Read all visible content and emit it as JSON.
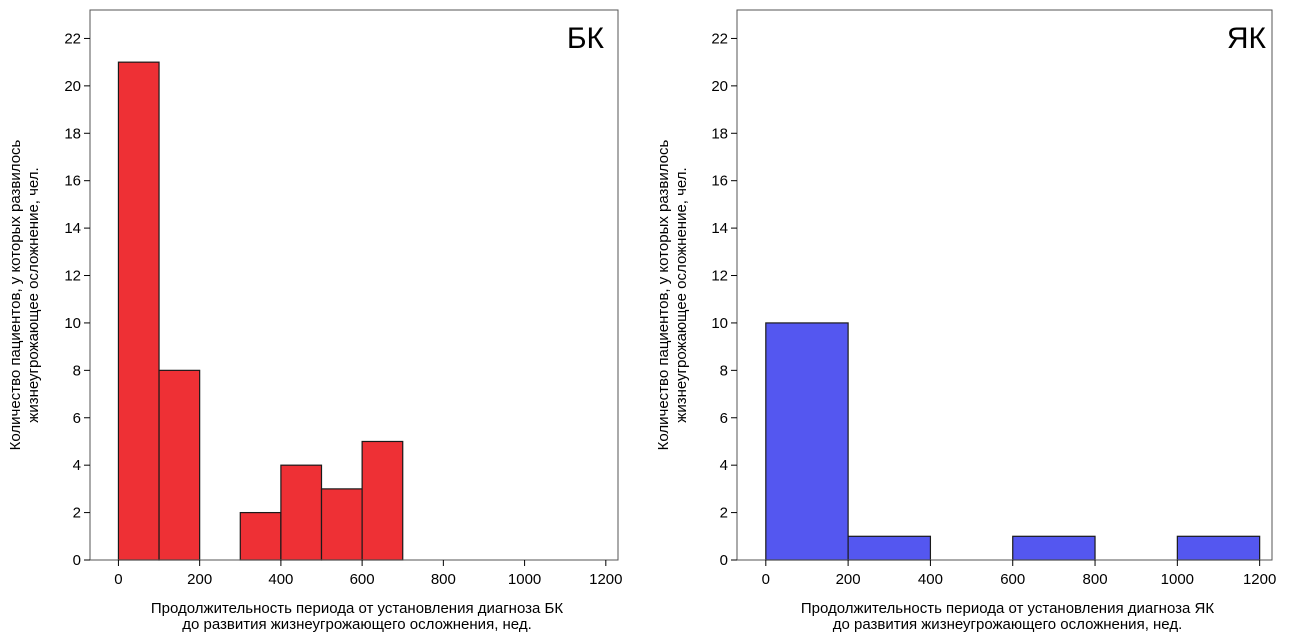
{
  "chart_data": [
    {
      "type": "bar",
      "panel_label": "БК",
      "ylabel_lines": [
        "Количество пациентов, у которых развилось",
        "жизнеугрожающее осложнение, чел."
      ],
      "xlabel_lines": [
        "Продолжительность периода от установления диагноза БК",
        "до развития жизнеугрожающего осложнения, нед."
      ],
      "xlim": [
        -70,
        1230
      ],
      "ylim": [
        0,
        23.2
      ],
      "xticks": [
        0,
        200,
        400,
        600,
        800,
        1000,
        1200
      ],
      "yticks": [
        0,
        2,
        4,
        6,
        8,
        10,
        12,
        14,
        16,
        18,
        20,
        22
      ],
      "bar_color": "#ee3035",
      "bins": [
        {
          "from": 0,
          "to": 100,
          "value": 21
        },
        {
          "from": 100,
          "to": 200,
          "value": 8
        },
        {
          "from": 300,
          "to": 400,
          "value": 2
        },
        {
          "from": 400,
          "to": 500,
          "value": 4
        },
        {
          "from": 500,
          "to": 600,
          "value": 3
        },
        {
          "from": 600,
          "to": 700,
          "value": 5
        }
      ]
    },
    {
      "type": "bar",
      "panel_label": "ЯК",
      "ylabel_lines": [
        "Количество пациентов, у которых развилось",
        "жизнеугрожающее осложнение, чел."
      ],
      "xlabel_lines": [
        "Продолжительность периода от установления диагноза ЯК",
        "до развития жизнеугрожающего осложнения, нед."
      ],
      "xlim": [
        -70,
        1230
      ],
      "ylim": [
        0,
        23.2
      ],
      "xticks": [
        0,
        200,
        400,
        600,
        800,
        1000,
        1200
      ],
      "yticks": [
        0,
        2,
        4,
        6,
        8,
        10,
        12,
        14,
        16,
        18,
        20,
        22
      ],
      "bar_color": "#5457f0",
      "bins": [
        {
          "from": 0,
          "to": 200,
          "value": 10
        },
        {
          "from": 200,
          "to": 400,
          "value": 1
        },
        {
          "from": 600,
          "to": 800,
          "value": 1
        },
        {
          "from": 1000,
          "to": 1200,
          "value": 1
        }
      ]
    }
  ]
}
